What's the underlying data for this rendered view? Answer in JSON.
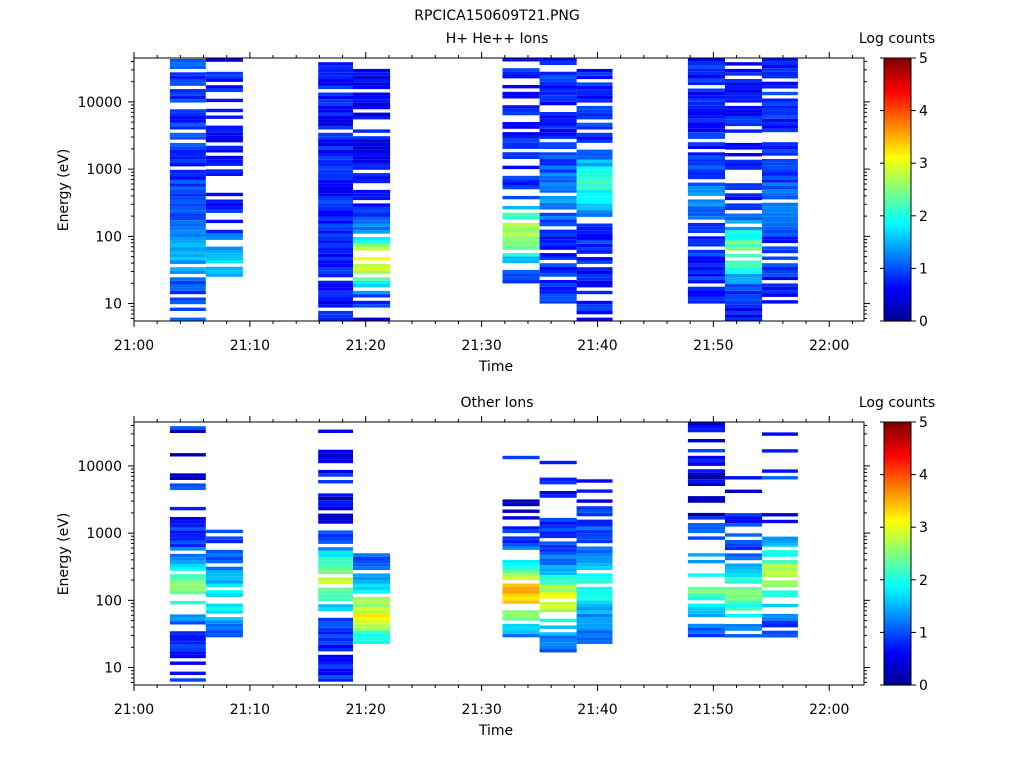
{
  "figure_title": "RPCICA150609T21.PNG",
  "colorbar_ticks": [
    "0",
    "1",
    "2",
    "3",
    "4",
    "5"
  ],
  "colormap": [
    "#00008f",
    "#0000ff",
    "#0080ff",
    "#00ffff",
    "#80ff80",
    "#ffff00",
    "#ff8000",
    "#ff0000",
    "#800000"
  ],
  "chart_data": [
    {
      "type": "heatmap",
      "title": "H+ He++ Ions",
      "xlabel": "Time",
      "ylabel": "Energy (eV)",
      "colorbar_label": "Log counts",
      "x_ticks": [
        "21:00",
        "21:10",
        "21:20",
        "21:30",
        "21:40",
        "21:50",
        "22:00"
      ],
      "y_ticks": [
        "10",
        "100",
        "1000",
        "10000"
      ],
      "y_scale": "log",
      "x_range_min": [
        0,
        63
      ],
      "y_range_ev": [
        5.5,
        45000
      ],
      "color_range": [
        0,
        5
      ],
      "scans": [
        {
          "t0_min": 3.1,
          "t1_min": 6.2,
          "emin": 5.5,
          "emax": 42000,
          "peak_e": 60,
          "peak_v": 1.5,
          "base_v": 0.9,
          "gaps": 0.18
        },
        {
          "t0_min": 6.2,
          "t1_min": 9.4,
          "emin": 25,
          "emax": 42000,
          "peak_e": 40,
          "peak_v": 1.7,
          "base_v": 0.7,
          "gaps": 0.35
        },
        {
          "t0_min": 15.9,
          "t1_min": 18.9,
          "emin": 5.5,
          "emax": 38000,
          "peak_e": 150,
          "peak_v": 0.9,
          "base_v": 0.7,
          "gaps": 0.12
        },
        {
          "t0_min": 18.9,
          "t1_min": 22.1,
          "emin": 5.5,
          "emax": 30000,
          "peak_e": 45,
          "peak_v": 3.0,
          "base_v": 0.6,
          "gaps": 0.25
        },
        {
          "t0_min": 31.8,
          "t1_min": 35.0,
          "emin": 20,
          "emax": 42000,
          "peak_e": 110,
          "peak_v": 2.8,
          "base_v": 0.8,
          "gaps": 0.3
        },
        {
          "t0_min": 35.0,
          "t1_min": 38.2,
          "emin": 10,
          "emax": 42000,
          "peak_e": 400,
          "peak_v": 1.4,
          "base_v": 0.8,
          "gaps": 0.2
        },
        {
          "t0_min": 38.2,
          "t1_min": 41.3,
          "emin": 5.5,
          "emax": 28000,
          "peak_e": 600,
          "peak_v": 2.0,
          "base_v": 0.8,
          "gaps": 0.22
        },
        {
          "t0_min": 47.8,
          "t1_min": 51.0,
          "emin": 10,
          "emax": 40000,
          "peak_e": 350,
          "peak_v": 1.3,
          "base_v": 0.8,
          "gaps": 0.12
        },
        {
          "t0_min": 51.0,
          "t1_min": 54.2,
          "emin": 5.5,
          "emax": 38000,
          "peak_e": 60,
          "peak_v": 2.4,
          "base_v": 0.7,
          "gaps": 0.3
        },
        {
          "t0_min": 54.2,
          "t1_min": 57.3,
          "emin": 10,
          "emax": 40000,
          "peak_e": 300,
          "peak_v": 1.2,
          "base_v": 0.8,
          "gaps": 0.2
        }
      ]
    },
    {
      "type": "heatmap",
      "title": "Other Ions",
      "xlabel": "Time",
      "ylabel": "Energy (eV)",
      "colorbar_label": "Log counts",
      "x_ticks": [
        "21:00",
        "21:10",
        "21:20",
        "21:30",
        "21:40",
        "21:50",
        "22:00"
      ],
      "y_ticks": [
        "10",
        "100",
        "1000",
        "10000"
      ],
      "y_scale": "log",
      "x_range_min": [
        0,
        63
      ],
      "y_range_ev": [
        5.5,
        45000
      ],
      "color_range": [
        0,
        5
      ],
      "scans": [
        {
          "t0_min": 3.1,
          "t1_min": 6.2,
          "emin": 5.5,
          "emax": 42000,
          "peak_e": 150,
          "peak_v": 2.6,
          "base_v": 0.8,
          "gaps": 0.3,
          "dense_max": 1500
        },
        {
          "t0_min": 6.2,
          "t1_min": 9.4,
          "emin": 20,
          "emax": 1050,
          "peak_e": 100,
          "peak_v": 1.9,
          "base_v": 0.9,
          "gaps": 0.12,
          "dense_max": 1050
        },
        {
          "t0_min": 15.9,
          "t1_min": 18.9,
          "emin": 5.5,
          "emax": 32000,
          "peak_e": 200,
          "peak_v": 2.8,
          "base_v": 0.8,
          "gaps": 0.3,
          "dense_max": 1000
        },
        {
          "t0_min": 18.9,
          "t1_min": 22.1,
          "emin": 20,
          "emax": 550,
          "peak_e": 60,
          "peak_v": 3.0,
          "base_v": 1.0,
          "gaps": 0.1,
          "dense_max": 550
        },
        {
          "t0_min": 31.8,
          "t1_min": 35.0,
          "emin": 20,
          "emax": 15000,
          "peak_e": 120,
          "peak_v": 3.5,
          "base_v": 0.9,
          "gaps": 0.3,
          "dense_max": 1500
        },
        {
          "t0_min": 35.0,
          "t1_min": 38.2,
          "emin": 15,
          "emax": 12000,
          "peak_e": 100,
          "peak_v": 3.0,
          "base_v": 0.9,
          "gaps": 0.2,
          "dense_max": 1500
        },
        {
          "t0_min": 38.2,
          "t1_min": 41.3,
          "emin": 20,
          "emax": 7000,
          "peak_e": 150,
          "peak_v": 2.0,
          "base_v": 1.0,
          "gaps": 0.15,
          "dense_max": 1500
        },
        {
          "t0_min": 47.8,
          "t1_min": 51.0,
          "emin": 20,
          "emax": 40000,
          "peak_e": 150,
          "peak_v": 2.4,
          "base_v": 0.9,
          "gaps": 0.3,
          "dense_max": 1400
        },
        {
          "t0_min": 51.0,
          "t1_min": 54.2,
          "emin": 25,
          "emax": 11000,
          "peak_e": 120,
          "peak_v": 2.4,
          "base_v": 0.9,
          "gaps": 0.3,
          "dense_max": 1000
        },
        {
          "t0_min": 54.2,
          "t1_min": 57.3,
          "emin": 25,
          "emax": 38000,
          "peak_e": 250,
          "peak_v": 2.7,
          "base_v": 0.9,
          "gaps": 0.3,
          "dense_max": 900
        }
      ]
    }
  ]
}
